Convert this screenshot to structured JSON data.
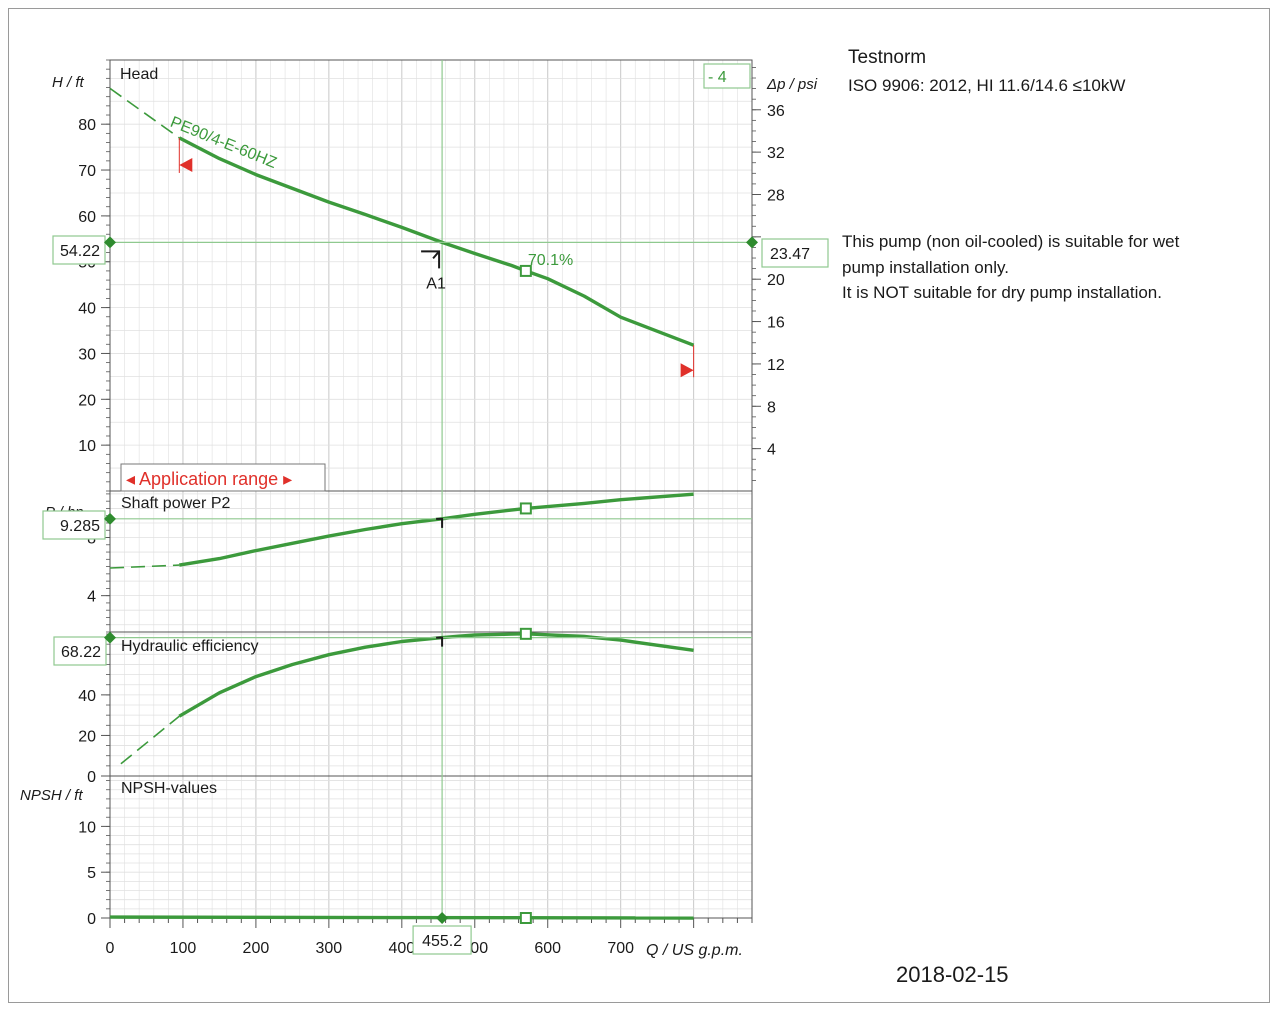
{
  "header": {
    "title": "Testnorm",
    "standard": "ISO 9906: 2012, HI 11.6/14.6 ≤10kW"
  },
  "note": {
    "line1": "This pump (non oil-cooled) is suitable for wet",
    "line2": "pump installation only.",
    "line3": "It is NOT suitable for dry pump installation."
  },
  "date": "2018-02-15",
  "colors": {
    "curve": "#3c9a3c",
    "marker": "#2e8b2e",
    "annotation": "#e0302a",
    "grid": "#d2d2d2"
  },
  "chart_data": [
    {
      "type": "line",
      "panel": "head",
      "title": "Head",
      "ylabel": "H / ft",
      "y2label": "Δp / psi",
      "xlabel": "Q / US g.p.m.",
      "xlim": [
        0,
        880
      ],
      "ylim": [
        0,
        94
      ],
      "y2lim": [
        0,
        40.7
      ],
      "yticks": [
        10,
        20,
        30,
        40,
        50,
        60,
        70,
        80
      ],
      "y2ticks": [
        4,
        8,
        12,
        16,
        20,
        24,
        28,
        32,
        36
      ],
      "y2ticks_labels": [
        "4",
        "8",
        "12",
        "16",
        "20",
        "",
        "28",
        "32",
        "36"
      ],
      "series": [
        {
          "name": "PE90/4-E-60HZ",
          "x": [
            95,
            150,
            200,
            250,
            300,
            350,
            400,
            455.2,
            500,
            550,
            570,
            600,
            650,
            700,
            800
          ],
          "values": [
            77,
            72.5,
            69,
            66,
            63,
            60.3,
            57.5,
            54.22,
            51.8,
            49.2,
            48,
            46.3,
            42.5,
            37.9,
            31.8
          ]
        }
      ],
      "extension_x": [
        0,
        95
      ],
      "extension_values": [
        87.8,
        77
      ],
      "range_min_x": 95,
      "range_max_x": 800,
      "duty_point_label": "A1",
      "duty_x": 455.2,
      "duty_value": 54.22,
      "duty_value_label": "54.22",
      "duty_y2_label": "23.47",
      "bep_x": 570,
      "bep_value": 48,
      "bep_label": "70.1%",
      "curve_number": "- 4",
      "application_range_label": "◂ Application range ▸",
      "grid": true
    },
    {
      "type": "line",
      "panel": "power",
      "title": "Shaft power P2",
      "ylabel": "P / hp",
      "ylim": [
        1.5,
        11.2
      ],
      "yticks": [
        4,
        8
      ],
      "series": [
        {
          "name": "",
          "x": [
            95,
            150,
            200,
            250,
            300,
            350,
            400,
            455.2,
            500,
            570,
            650,
            700,
            800
          ],
          "values": [
            6.1,
            6.55,
            7.1,
            7.6,
            8.1,
            8.55,
            8.95,
            9.285,
            9.6,
            10.0,
            10.35,
            10.6,
            10.98
          ]
        }
      ],
      "extension_x": [
        0,
        95
      ],
      "extension_values": [
        5.9,
        6.1
      ],
      "duty_value_label": "9.285",
      "bep_value": 10.0,
      "grid": true
    },
    {
      "type": "line",
      "panel": "efficiency",
      "title": "Hydraulic efficiency",
      "ylabel": "",
      "ylim": [
        0,
        71
      ],
      "yticks": [
        0,
        20,
        40
      ],
      "series": [
        {
          "name": "",
          "x": [
            95,
            150,
            200,
            250,
            300,
            350,
            400,
            455.2,
            500,
            570,
            650,
            700,
            800
          ],
          "values": [
            29.5,
            41,
            49,
            55,
            59.8,
            63.5,
            66.3,
            68.22,
            69.5,
            70.1,
            68.8,
            67,
            62
          ]
        }
      ],
      "extension_x": [
        15,
        95
      ],
      "extension_values": [
        6,
        29.5
      ],
      "duty_value_label": "68.22",
      "bep_value": 70.1,
      "grid": true
    },
    {
      "type": "line",
      "panel": "npsh",
      "title": "NPSH-values",
      "ylabel": "NPSH / ft",
      "ylim": [
        0,
        15.5
      ],
      "yticks": [
        0,
        5,
        10
      ],
      "xticks": [
        0,
        100,
        200,
        300,
        400,
        500,
        600,
        700
      ],
      "xtick_labels": [
        "0",
        "100",
        "200",
        "300",
        "400",
        "500",
        "600",
        "700"
      ],
      "series": [
        {
          "name": "",
          "x": [
            0,
            800
          ],
          "values": [
            0.1,
            0
          ]
        }
      ],
      "duty_x_label": "455.2",
      "bep_value": 0,
      "grid": true
    }
  ]
}
